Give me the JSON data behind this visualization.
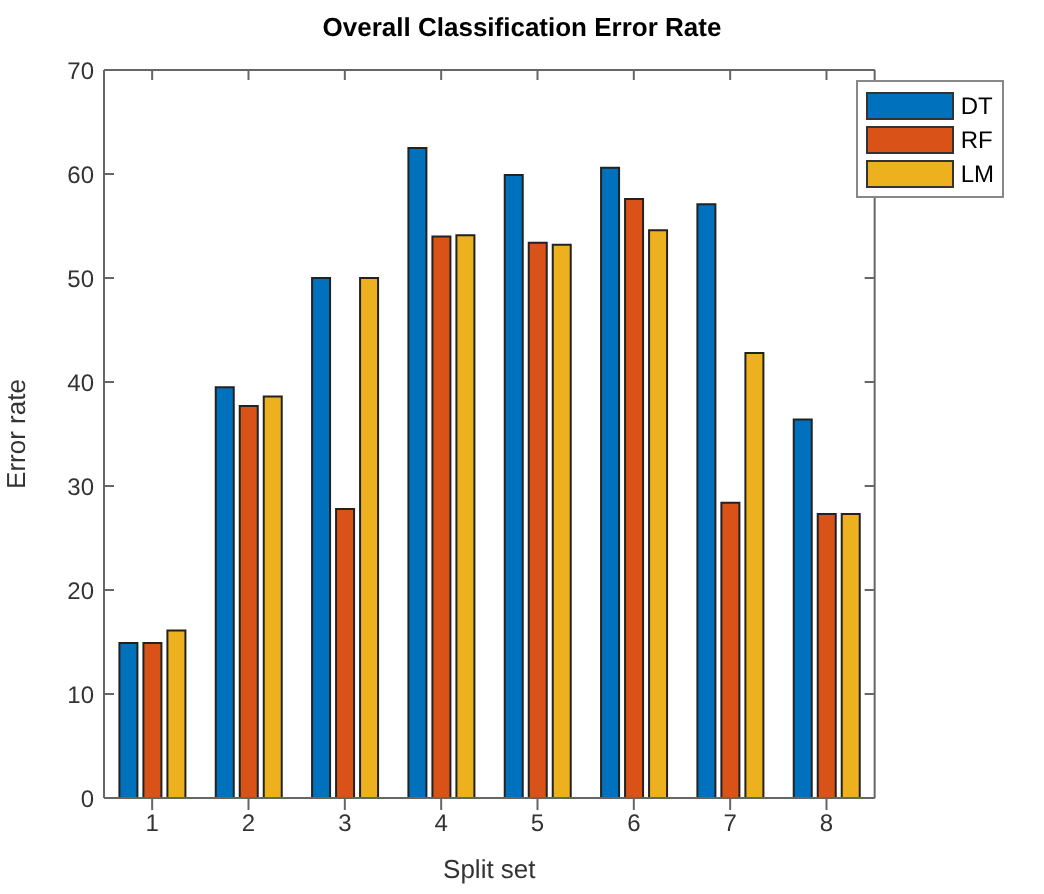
{
  "chart_data": {
    "type": "bar",
    "title": "Overall Classification Error Rate",
    "xlabel": "Split set",
    "ylabel": "Error rate",
    "categories": [
      "1",
      "2",
      "3",
      "4",
      "5",
      "6",
      "7",
      "8"
    ],
    "series": [
      {
        "name": "DT",
        "color": "#0072bd",
        "values": [
          14.9,
          39.5,
          50,
          62.5,
          59.9,
          60.6,
          57.1,
          36.4
        ]
      },
      {
        "name": "RF",
        "color": "#d95319",
        "values": [
          14.9,
          37.7,
          27.8,
          54.0,
          53.4,
          57.6,
          28.4,
          27.3
        ]
      },
      {
        "name": "LM",
        "color": "#edb120",
        "values": [
          16.1,
          38.6,
          50,
          54.1,
          53.2,
          54.6,
          42.8,
          27.3
        ]
      }
    ],
    "ylim": [
      0,
      70
    ],
    "yticks": [
      0,
      10,
      20,
      30,
      40,
      50,
      60,
      70
    ],
    "legend": "top right"
  }
}
